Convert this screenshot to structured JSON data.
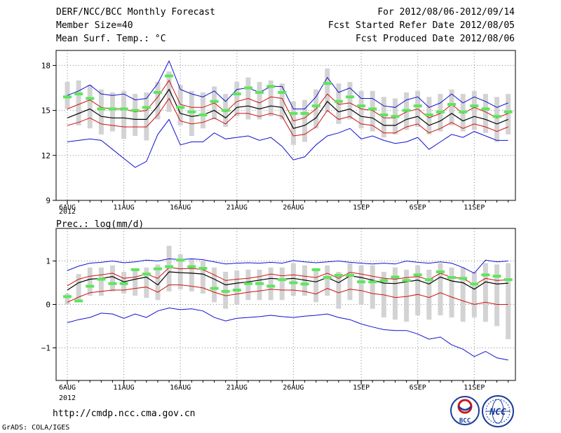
{
  "header": {
    "title": "DERF/NCC/BCC Monthly Forecast",
    "member_size": "Member Size=40",
    "variable": "Mean Surf. Temp.: °C",
    "period": "For 2012/08/06-2012/09/14",
    "fcst_started": "Fcst Started Refer Date 2012/08/05",
    "fcst_produced": "Fcst Produced Date 2012/08/06"
  },
  "footer": {
    "url": "http://cmdp.ncc.cma.gov.cn",
    "grads": "GrADS: COLA/IGES",
    "logo1_text": "BCC",
    "logo2_text": "NCC"
  },
  "colors": {
    "ensemble_mean": "#000000",
    "std_band": "#d01010",
    "extreme_envelope": "#1010d0",
    "box": "#d3d3d3",
    "observation": "#5ce65c"
  },
  "chart_data": [
    {
      "type": "line",
      "title": "Mean Surf. Temp.: °C",
      "xlabel": "",
      "ylabel": "",
      "x_tick_labels": [
        "6AUG",
        "11AUG",
        "16AUG",
        "21AUG",
        "26AUG",
        "1SEP",
        "6SEP",
        "11SEP"
      ],
      "x_tick_days": [
        0,
        5,
        10,
        15,
        20,
        26,
        31,
        36
      ],
      "year_label": "2012",
      "y_tick_labels": [
        "9",
        "12",
        "15",
        "18"
      ],
      "ylim": [
        9,
        19
      ],
      "days": 40,
      "series": [
        {
          "name": "upper-extreme",
          "values": [
            16.0,
            16.3,
            16.7,
            16.1,
            16.0,
            16.1,
            15.7,
            15.8,
            16.8,
            18.3,
            16.4,
            16.1,
            15.9,
            16.3,
            15.6,
            16.4,
            16.5,
            16.2,
            16.6,
            16.6,
            15.1,
            15.1,
            15.9,
            17.2,
            16.2,
            16.5,
            15.8,
            15.8,
            15.3,
            15.2,
            15.7,
            15.9,
            15.2,
            15.5,
            16.1,
            15.5,
            15.9,
            15.6,
            15.2,
            15.5
          ]
        },
        {
          "name": "upper-std",
          "values": [
            15.1,
            15.4,
            15.7,
            15.2,
            15.1,
            15.1,
            14.9,
            15.0,
            15.9,
            17.0,
            15.4,
            15.2,
            15.2,
            15.5,
            14.9,
            15.6,
            15.8,
            15.5,
            15.9,
            15.8,
            14.3,
            14.5,
            15.1,
            16.1,
            15.4,
            15.5,
            15.1,
            15.0,
            14.5,
            14.5,
            14.9,
            15.1,
            14.5,
            14.8,
            15.4,
            14.8,
            15.2,
            14.9,
            14.5,
            14.8
          ]
        },
        {
          "name": "ensemble-mean",
          "values": [
            14.5,
            14.8,
            15.1,
            14.6,
            14.5,
            14.5,
            14.4,
            14.4,
            15.3,
            16.4,
            14.8,
            14.6,
            14.7,
            15.0,
            14.5,
            15.2,
            15.3,
            15.1,
            15.3,
            15.2,
            13.8,
            14.0,
            14.5,
            15.6,
            14.9,
            15.1,
            14.6,
            14.5,
            14.0,
            14.0,
            14.4,
            14.6,
            14.0,
            14.3,
            14.8,
            14.3,
            14.6,
            14.4,
            14.1,
            14.4
          ]
        },
        {
          "name": "lower-std",
          "values": [
            14.0,
            14.2,
            14.5,
            14.1,
            14.0,
            13.9,
            13.9,
            13.9,
            14.7,
            15.8,
            14.3,
            14.1,
            14.2,
            14.5,
            14.1,
            14.8,
            14.8,
            14.6,
            14.8,
            14.6,
            13.3,
            13.4,
            13.9,
            15.0,
            14.4,
            14.6,
            14.1,
            14.0,
            13.5,
            13.5,
            13.9,
            14.1,
            13.5,
            13.8,
            14.2,
            13.8,
            14.1,
            13.9,
            13.6,
            13.9
          ]
        },
        {
          "name": "lower-extreme",
          "values": [
            12.9,
            13.0,
            13.1,
            13.0,
            12.4,
            11.8,
            11.2,
            11.6,
            13.4,
            14.4,
            12.7,
            12.9,
            12.9,
            13.5,
            13.1,
            13.2,
            13.3,
            13.0,
            13.2,
            12.6,
            11.7,
            11.9,
            12.7,
            13.3,
            13.5,
            13.8,
            13.1,
            13.3,
            13.0,
            12.8,
            12.9,
            13.2,
            12.4,
            12.9,
            13.4,
            13.2,
            13.6,
            13.3,
            13.0,
            13.0
          ]
        },
        {
          "name": "observed",
          "values": [
            15.9,
            16.1,
            15.8,
            15.1,
            15.1,
            15.1,
            15.0,
            15.2,
            16.2,
            17.3,
            15.2,
            14.9,
            14.7,
            15.6,
            15.0,
            16.1,
            16.5,
            16.2,
            16.6,
            16.2,
            14.8,
            14.8,
            15.3,
            16.8,
            15.6,
            15.9,
            15.3,
            15.1,
            14.7,
            14.6,
            15.0,
            15.3,
            14.7,
            14.9,
            15.4,
            14.9,
            15.3,
            15.1,
            14.6,
            14.9
          ]
        },
        {
          "name": "box-top",
          "values": [
            16.9,
            17.0,
            16.7,
            16.4,
            16.2,
            16.3,
            16.1,
            16.2,
            16.9,
            17.6,
            16.7,
            16.3,
            16.2,
            16.6,
            16.1,
            16.9,
            17.2,
            16.9,
            17.0,
            16.8,
            15.6,
            15.7,
            16.4,
            17.8,
            16.8,
            16.9,
            16.3,
            16.3,
            15.9,
            15.8,
            16.2,
            16.3,
            15.9,
            16.1,
            16.4,
            16.1,
            16.3,
            16.1,
            15.9,
            16.1
          ]
        },
        {
          "name": "box-bottom",
          "values": [
            15.1,
            14.0,
            13.8,
            13.4,
            13.6,
            13.1,
            13.3,
            13.0,
            14.4,
            14.9,
            14.0,
            13.3,
            13.8,
            14.4,
            13.9,
            14.6,
            14.4,
            14.4,
            14.6,
            14.4,
            12.7,
            12.9,
            13.8,
            14.9,
            14.1,
            14.4,
            13.8,
            13.6,
            13.2,
            13.4,
            13.7,
            13.9,
            13.4,
            13.6,
            14.0,
            13.6,
            13.7,
            13.5,
            12.9,
            13.4
          ]
        }
      ]
    },
    {
      "type": "line",
      "title": "Prec.: log(mm/d)",
      "xlabel": "",
      "ylabel": "",
      "x_tick_labels": [
        "6AUG",
        "11AUG",
        "16AUG",
        "21AUG",
        "26AUG",
        "1SEP",
        "6SEP",
        "11SEP"
      ],
      "x_tick_days": [
        0,
        5,
        10,
        15,
        20,
        26,
        31,
        36
      ],
      "year_label": "2012",
      "y_tick_labels": [
        "−1",
        "0",
        "1"
      ],
      "ylim": [
        -1.75,
        1.75
      ],
      "days": 40,
      "series": [
        {
          "name": "upper-extreme",
          "values": [
            0.78,
            0.88,
            0.95,
            0.97,
            1.0,
            0.96,
            0.98,
            1.02,
            1.0,
            1.05,
            1.03,
            1.05,
            1.03,
            0.98,
            0.93,
            0.95,
            0.96,
            0.95,
            0.97,
            0.95,
            1.01,
            0.98,
            0.96,
            0.98,
            1.0,
            0.97,
            0.95,
            0.93,
            0.95,
            0.93,
            1.0,
            0.97,
            0.95,
            0.98,
            0.95,
            0.85,
            0.72,
            1.02,
            0.98,
            1.0
          ]
        },
        {
          "name": "upper-std",
          "values": [
            0.43,
            0.58,
            0.65,
            0.68,
            0.72,
            0.6,
            0.63,
            0.7,
            0.6,
            0.85,
            0.82,
            0.83,
            0.8,
            0.68,
            0.55,
            0.58,
            0.6,
            0.64,
            0.7,
            0.66,
            0.68,
            0.65,
            0.62,
            0.72,
            0.6,
            0.74,
            0.7,
            0.65,
            0.6,
            0.58,
            0.62,
            0.64,
            0.57,
            0.72,
            0.62,
            0.6,
            0.45,
            0.6,
            0.55,
            0.57
          ]
        },
        {
          "name": "ensemble-mean",
          "values": [
            0.33,
            0.5,
            0.58,
            0.6,
            0.64,
            0.52,
            0.58,
            0.63,
            0.45,
            0.75,
            0.73,
            0.72,
            0.7,
            0.58,
            0.45,
            0.49,
            0.52,
            0.56,
            0.6,
            0.58,
            0.6,
            0.56,
            0.52,
            0.62,
            0.5,
            0.66,
            0.62,
            0.56,
            0.49,
            0.48,
            0.52,
            0.56,
            0.47,
            0.63,
            0.54,
            0.5,
            0.35,
            0.52,
            0.47,
            0.49
          ]
        },
        {
          "name": "lower-std",
          "values": [
            0.05,
            0.17,
            0.27,
            0.3,
            0.33,
            0.33,
            0.37,
            0.4,
            0.28,
            0.45,
            0.45,
            0.42,
            0.38,
            0.28,
            0.2,
            0.24,
            0.28,
            0.31,
            0.35,
            0.33,
            0.33,
            0.3,
            0.24,
            0.37,
            0.27,
            0.35,
            0.32,
            0.25,
            0.22,
            0.16,
            0.18,
            0.23,
            0.16,
            0.27,
            0.17,
            0.08,
            0.0,
            0.05,
            0.0,
            0.0
          ]
        },
        {
          "name": "lower-extreme",
          "values": [
            -0.42,
            -0.35,
            -0.3,
            -0.2,
            -0.22,
            -0.32,
            -0.22,
            -0.3,
            -0.15,
            -0.08,
            -0.12,
            -0.1,
            -0.15,
            -0.3,
            -0.38,
            -0.32,
            -0.3,
            -0.28,
            -0.25,
            -0.28,
            -0.3,
            -0.27,
            -0.25,
            -0.22,
            -0.3,
            -0.35,
            -0.45,
            -0.52,
            -0.58,
            -0.6,
            -0.6,
            -0.68,
            -0.8,
            -0.75,
            -0.93,
            -1.03,
            -1.2,
            -1.08,
            -1.23,
            -1.28
          ]
        },
        {
          "name": "observed",
          "values": [
            0.18,
            0.08,
            0.42,
            0.58,
            0.48,
            0.48,
            0.8,
            0.7,
            0.82,
            0.87,
            1.02,
            0.87,
            0.83,
            0.37,
            0.3,
            0.33,
            0.48,
            0.48,
            0.42,
            0.57,
            0.5,
            0.47,
            0.8,
            0.62,
            0.67,
            0.67,
            0.52,
            0.52,
            0.55,
            0.63,
            0.55,
            0.68,
            0.57,
            0.75,
            0.62,
            0.6,
            0.47,
            0.68,
            0.65,
            0.57
          ]
        },
        {
          "name": "box-top",
          "values": [
            0.25,
            0.7,
            0.85,
            0.85,
            0.9,
            0.75,
            0.8,
            0.85,
            0.92,
            1.35,
            1.15,
            1.05,
            1.0,
            0.85,
            0.75,
            0.78,
            0.8,
            0.8,
            0.85,
            0.85,
            0.95,
            0.9,
            0.8,
            0.9,
            0.75,
            0.95,
            0.9,
            0.9,
            0.75,
            0.85,
            0.8,
            0.9,
            0.8,
            0.95,
            0.85,
            0.85,
            0.75,
            0.95,
            0.92,
            0.95
          ]
        },
        {
          "name": "box-bottom",
          "values": [
            0.0,
            0.1,
            0.2,
            0.2,
            0.3,
            0.25,
            0.2,
            0.15,
            0.1,
            0.3,
            0.35,
            0.3,
            0.25,
            0.05,
            -0.1,
            0.0,
            0.1,
            0.1,
            0.1,
            0.1,
            0.2,
            0.2,
            0.05,
            0.2,
            -0.1,
            0.1,
            0.0,
            -0.1,
            -0.3,
            -0.35,
            -0.4,
            -0.25,
            -0.35,
            -0.25,
            -0.3,
            -0.4,
            -0.3,
            -0.4,
            -0.5,
            -0.8
          ]
        }
      ]
    }
  ]
}
